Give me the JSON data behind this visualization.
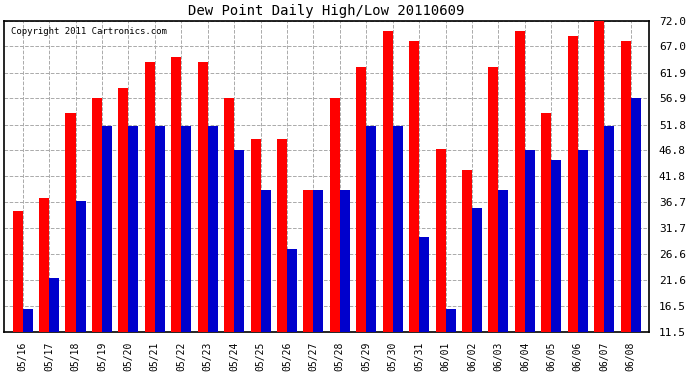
{
  "title": "Dew Point Daily High/Low 20110609",
  "copyright": "Copyright 2011 Cartronics.com",
  "dates": [
    "05/16",
    "05/17",
    "05/18",
    "05/19",
    "05/20",
    "05/21",
    "05/22",
    "05/23",
    "05/24",
    "05/25",
    "05/26",
    "05/27",
    "05/28",
    "05/29",
    "05/30",
    "05/31",
    "06/01",
    "06/02",
    "06/03",
    "06/04",
    "06/05",
    "06/06",
    "06/07",
    "06/08"
  ],
  "highs": [
    35.0,
    37.5,
    54.0,
    57.0,
    59.0,
    64.0,
    65.0,
    64.0,
    57.0,
    49.0,
    49.0,
    39.0,
    57.0,
    63.0,
    70.0,
    68.0,
    47.0,
    43.0,
    63.0,
    70.0,
    54.0,
    69.0,
    72.0,
    68.0
  ],
  "lows": [
    16.0,
    22.0,
    37.0,
    51.5,
    51.5,
    51.5,
    51.5,
    51.5,
    46.8,
    39.0,
    27.5,
    39.0,
    39.0,
    51.5,
    51.5,
    30.0,
    16.0,
    35.5,
    39.0,
    46.8,
    45.0,
    46.8,
    51.5,
    56.9
  ],
  "high_color": "#ff0000",
  "low_color": "#0000cc",
  "bg_color": "#ffffff",
  "plot_bg_color": "#ffffff",
  "grid_color": "#aaaaaa",
  "ymin": 11.5,
  "ymax": 72.0,
  "yticks": [
    11.5,
    16.5,
    21.6,
    26.6,
    31.7,
    36.7,
    41.8,
    46.8,
    51.8,
    56.9,
    61.9,
    67.0,
    72.0
  ],
  "bar_width": 0.38
}
